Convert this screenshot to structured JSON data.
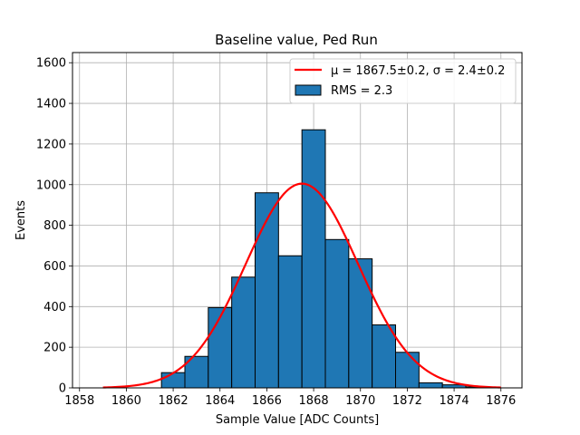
{
  "chart_data": {
    "type": "bar",
    "title": "Baseline value, Ped Run",
    "xlabel": "Sample Value [ADC Counts]",
    "ylabel": "Events",
    "xlim": [
      1857.7,
      1876.9
    ],
    "ylim": [
      0,
      1650
    ],
    "xticks": [
      1858,
      1860,
      1862,
      1864,
      1866,
      1868,
      1870,
      1872,
      1874,
      1876
    ],
    "yticks": [
      0,
      200,
      400,
      600,
      800,
      1000,
      1200,
      1400,
      1600
    ],
    "grid": true,
    "legend_position": "top-right",
    "bar_color": "#1f77b4",
    "fit_color": "#ff0000",
    "histogram": {
      "name": "RMS = 2.3",
      "bins": [
        {
          "left": 1861.5,
          "right": 1862.5,
          "count": 75
        },
        {
          "left": 1862.5,
          "right": 1863.5,
          "count": 155
        },
        {
          "left": 1863.5,
          "right": 1864.5,
          "count": 395
        },
        {
          "left": 1864.5,
          "right": 1865.5,
          "count": 545
        },
        {
          "left": 1865.5,
          "right": 1866.5,
          "count": 960
        },
        {
          "left": 1866.5,
          "right": 1867.5,
          "count": 650
        },
        {
          "left": 1867.5,
          "right": 1868.5,
          "count": 1270
        },
        {
          "left": 1868.5,
          "right": 1869.5,
          "count": 730
        },
        {
          "left": 1869.5,
          "right": 1870.5,
          "count": 635
        },
        {
          "left": 1870.5,
          "right": 1871.5,
          "count": 310
        },
        {
          "left": 1871.5,
          "right": 1872.5,
          "count": 175
        },
        {
          "left": 1872.5,
          "right": 1873.5,
          "count": 25
        },
        {
          "left": 1873.5,
          "right": 1874.5,
          "count": 15
        },
        {
          "left": 1874.5,
          "right": 1875.5,
          "count": 5
        }
      ]
    },
    "fit": {
      "name": "μ = 1867.5±0.2, σ = 2.4±0.2",
      "type": "gaussian",
      "mu": 1867.5,
      "sigma": 2.4,
      "amplitude": 1005,
      "x_range": [
        1859,
        1876
      ]
    }
  }
}
